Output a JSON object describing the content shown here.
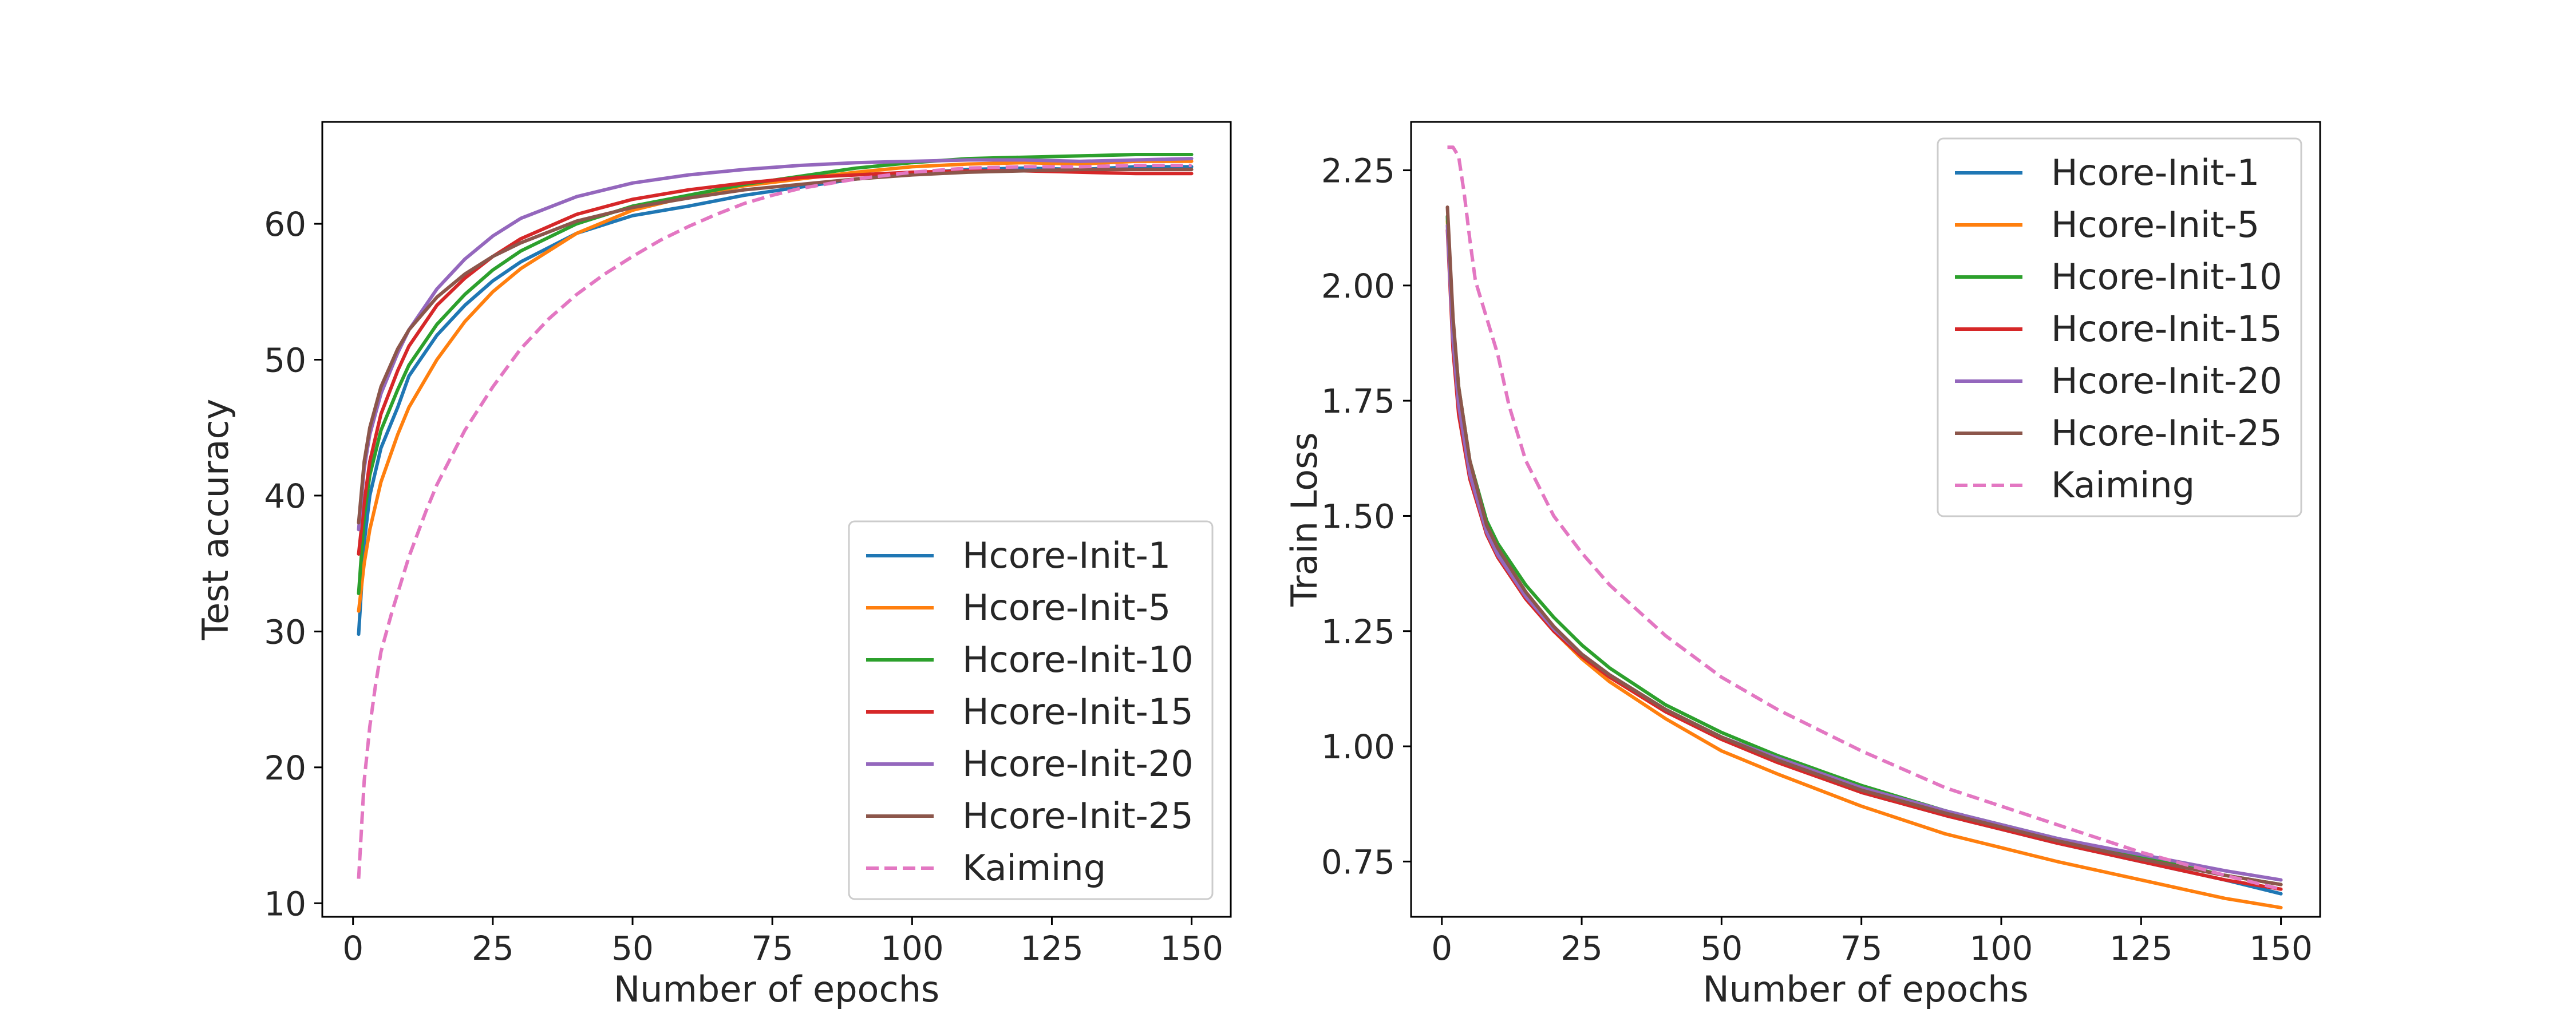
{
  "chart_data": [
    {
      "type": "line",
      "xlabel": "Number of epochs",
      "ylabel": "Test accuracy",
      "xlim": [
        -5.5,
        157
      ],
      "ylim": [
        9,
        67.5
      ],
      "xticks": [
        0,
        25,
        50,
        75,
        100,
        125,
        150
      ],
      "yticks": [
        10,
        20,
        30,
        40,
        50,
        60
      ],
      "grid": false,
      "legend": "lower right",
      "series": [
        {
          "name": "Hcore-Init-1",
          "color": "#1f77b4",
          "dashed": false,
          "x": [
            1,
            2,
            3,
            5,
            8,
            10,
            15,
            20,
            25,
            30,
            40,
            50,
            60,
            70,
            80,
            90,
            100,
            110,
            120,
            130,
            140,
            150
          ],
          "y": [
            29.8,
            36.5,
            40.0,
            43.5,
            46.5,
            48.8,
            51.8,
            54.0,
            55.8,
            57.2,
            59.3,
            60.6,
            61.3,
            62.1,
            62.7,
            63.3,
            63.7,
            64.0,
            64.1,
            64.0,
            64.2,
            64.2
          ]
        },
        {
          "name": "Hcore-Init-5",
          "color": "#ff7f0e",
          "dashed": false,
          "x": [
            1,
            2,
            3,
            5,
            8,
            10,
            15,
            20,
            25,
            30,
            40,
            50,
            60,
            70,
            80,
            90,
            100,
            110,
            120,
            130,
            140,
            150
          ],
          "y": [
            31.5,
            35.0,
            37.5,
            41.0,
            44.5,
            46.5,
            50.0,
            52.8,
            55.0,
            56.7,
            59.3,
            61.0,
            62.0,
            62.8,
            63.3,
            63.8,
            64.2,
            64.4,
            64.5,
            64.4,
            64.6,
            64.6
          ]
        },
        {
          "name": "Hcore-Init-10",
          "color": "#2ca02c",
          "dashed": false,
          "x": [
            1,
            2,
            3,
            5,
            8,
            10,
            15,
            20,
            25,
            30,
            40,
            50,
            60,
            70,
            80,
            90,
            100,
            110,
            120,
            130,
            140,
            150
          ],
          "y": [
            32.8,
            38.5,
            41.5,
            44.8,
            47.8,
            49.6,
            52.6,
            54.8,
            56.6,
            58.0,
            60.0,
            61.3,
            62.1,
            62.9,
            63.5,
            64.1,
            64.5,
            64.8,
            64.9,
            65.0,
            65.1,
            65.1
          ]
        },
        {
          "name": "Hcore-Init-15",
          "color": "#d62728",
          "dashed": false,
          "x": [
            1,
            2,
            3,
            5,
            8,
            10,
            15,
            20,
            25,
            30,
            40,
            50,
            60,
            70,
            80,
            90,
            100,
            110,
            120,
            130,
            140,
            150
          ],
          "y": [
            35.7,
            39.5,
            42.5,
            46.0,
            49.2,
            51.0,
            54.0,
            56.0,
            57.6,
            58.9,
            60.7,
            61.8,
            62.5,
            63.0,
            63.4,
            63.6,
            63.8,
            63.9,
            63.9,
            63.8,
            63.7,
            63.7
          ]
        },
        {
          "name": "Hcore-Init-20",
          "color": "#9467bd",
          "dashed": false,
          "x": [
            1,
            2,
            3,
            5,
            8,
            10,
            15,
            20,
            25,
            30,
            40,
            50,
            60,
            70,
            80,
            90,
            100,
            110,
            120,
            130,
            140,
            150
          ],
          "y": [
            37.5,
            42.0,
            44.5,
            47.5,
            50.5,
            52.2,
            55.2,
            57.4,
            59.1,
            60.4,
            62.0,
            63.0,
            63.6,
            64.0,
            64.3,
            64.5,
            64.6,
            64.7,
            64.7,
            64.6,
            64.7,
            64.8
          ]
        },
        {
          "name": "Hcore-Init-25",
          "color": "#8c564b",
          "dashed": false,
          "x": [
            1,
            2,
            3,
            5,
            8,
            10,
            15,
            20,
            25,
            30,
            40,
            50,
            60,
            70,
            80,
            90,
            100,
            110,
            120,
            130,
            140,
            150
          ],
          "y": [
            38.0,
            42.5,
            45.0,
            48.0,
            50.8,
            52.2,
            54.6,
            56.3,
            57.6,
            58.6,
            60.2,
            61.2,
            61.9,
            62.5,
            62.9,
            63.3,
            63.6,
            63.8,
            63.9,
            64.0,
            64.0,
            64.0
          ]
        },
        {
          "name": "Kaiming",
          "color": "#e377c2",
          "dashed": true,
          "x": [
            1,
            2,
            3,
            4,
            5,
            7,
            10,
            13,
            15,
            20,
            25,
            30,
            35,
            40,
            45,
            50,
            55,
            60,
            65,
            70,
            75,
            80,
            90,
            100,
            110,
            120,
            130,
            140,
            150
          ],
          "y": [
            11.8,
            19.0,
            23.0,
            26.0,
            28.5,
            31.5,
            35.5,
            38.8,
            40.8,
            44.8,
            48.0,
            50.8,
            53.0,
            54.8,
            56.3,
            57.6,
            58.8,
            59.8,
            60.7,
            61.5,
            62.1,
            62.6,
            63.3,
            63.8,
            64.1,
            64.2,
            64.2,
            64.3,
            64.3
          ]
        }
      ]
    },
    {
      "type": "line",
      "xlabel": "Number of epochs",
      "ylabel": "Train Loss",
      "xlim": [
        -5.5,
        157
      ],
      "ylim": [
        0.63,
        2.355
      ],
      "xticks": [
        0,
        25,
        50,
        75,
        100,
        125,
        150
      ],
      "yticks": [
        0.75,
        1.0,
        1.25,
        1.5,
        1.75,
        2.0,
        2.25
      ],
      "ytick_labels": [
        "0.75",
        "1.00",
        "1.25",
        "1.50",
        "1.75",
        "2.00",
        "2.25"
      ],
      "grid": false,
      "legend": "upper right",
      "series": [
        {
          "name": "Hcore-Init-1",
          "color": "#1f77b4",
          "dashed": false,
          "x": [
            1,
            2,
            3,
            5,
            8,
            10,
            15,
            20,
            25,
            30,
            40,
            50,
            60,
            75,
            90,
            100,
            110,
            125,
            140,
            150
          ],
          "y": [
            2.15,
            1.9,
            1.76,
            1.6,
            1.47,
            1.42,
            1.33,
            1.26,
            1.2,
            1.155,
            1.08,
            1.02,
            0.97,
            0.9,
            0.85,
            0.82,
            0.79,
            0.75,
            0.71,
            0.68
          ]
        },
        {
          "name": "Hcore-Init-5",
          "color": "#ff7f0e",
          "dashed": false,
          "x": [
            1,
            2,
            3,
            5,
            8,
            10,
            15,
            20,
            25,
            30,
            40,
            50,
            60,
            75,
            90,
            100,
            110,
            125,
            140,
            150
          ],
          "y": [
            2.14,
            1.88,
            1.74,
            1.59,
            1.46,
            1.41,
            1.32,
            1.25,
            1.19,
            1.14,
            1.06,
            0.99,
            0.94,
            0.87,
            0.81,
            0.78,
            0.75,
            0.71,
            0.67,
            0.65
          ]
        },
        {
          "name": "Hcore-Init-10",
          "color": "#2ca02c",
          "dashed": false,
          "x": [
            1,
            2,
            3,
            5,
            8,
            10,
            15,
            20,
            25,
            30,
            40,
            50,
            60,
            75,
            90,
            100,
            110,
            125,
            140,
            150
          ],
          "y": [
            2.15,
            1.92,
            1.78,
            1.62,
            1.49,
            1.44,
            1.35,
            1.28,
            1.22,
            1.17,
            1.09,
            1.03,
            0.98,
            0.915,
            0.86,
            0.83,
            0.8,
            0.76,
            0.72,
            0.7
          ]
        },
        {
          "name": "Hcore-Init-15",
          "color": "#d62728",
          "dashed": false,
          "x": [
            1,
            2,
            3,
            5,
            8,
            10,
            15,
            20,
            25,
            30,
            40,
            50,
            60,
            75,
            90,
            100,
            110,
            125,
            140,
            150
          ],
          "y": [
            2.12,
            1.86,
            1.72,
            1.58,
            1.46,
            1.41,
            1.32,
            1.25,
            1.195,
            1.15,
            1.075,
            1.015,
            0.965,
            0.9,
            0.85,
            0.82,
            0.79,
            0.75,
            0.71,
            0.69
          ]
        },
        {
          "name": "Hcore-Init-20",
          "color": "#9467bd",
          "dashed": false,
          "x": [
            1,
            2,
            3,
            5,
            8,
            10,
            15,
            20,
            25,
            30,
            40,
            50,
            60,
            75,
            90,
            100,
            110,
            125,
            140,
            150
          ],
          "y": [
            2.13,
            1.88,
            1.74,
            1.59,
            1.465,
            1.415,
            1.325,
            1.255,
            1.2,
            1.155,
            1.08,
            1.02,
            0.975,
            0.91,
            0.86,
            0.83,
            0.8,
            0.765,
            0.73,
            0.71
          ]
        },
        {
          "name": "Hcore-Init-25",
          "color": "#8c564b",
          "dashed": false,
          "x": [
            1,
            2,
            3,
            5,
            8,
            10,
            15,
            20,
            25,
            30,
            40,
            50,
            60,
            75,
            90,
            100,
            110,
            125,
            140,
            150
          ],
          "y": [
            2.17,
            1.93,
            1.78,
            1.62,
            1.48,
            1.43,
            1.335,
            1.26,
            1.2,
            1.155,
            1.08,
            1.02,
            0.97,
            0.905,
            0.855,
            0.825,
            0.795,
            0.755,
            0.72,
            0.7
          ]
        },
        {
          "name": "Kaiming",
          "color": "#e377c2",
          "dashed": true,
          "x": [
            1,
            2,
            3,
            4,
            5,
            6,
            8,
            10,
            12,
            15,
            20,
            25,
            30,
            40,
            50,
            60,
            75,
            90,
            100,
            110,
            125,
            140,
            150
          ],
          "y": [
            2.3,
            2.3,
            2.28,
            2.2,
            2.1,
            2.01,
            1.93,
            1.85,
            1.74,
            1.62,
            1.5,
            1.42,
            1.35,
            1.24,
            1.15,
            1.08,
            0.99,
            0.91,
            0.87,
            0.83,
            0.77,
            0.72,
            0.69
          ]
        }
      ]
    }
  ]
}
